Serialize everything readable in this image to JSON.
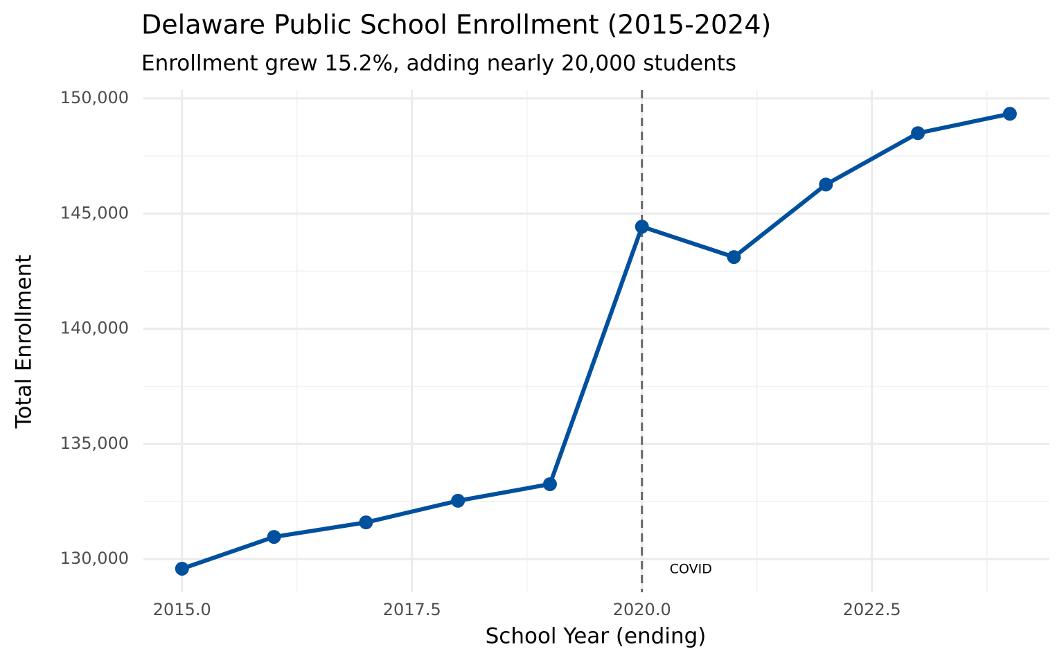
{
  "chart_data": {
    "type": "line",
    "title": "Delaware Public School Enrollment (2015-2024)",
    "subtitle": "Enrollment grew 15.2%, adding nearly 20,000 students",
    "x_label": "School Year (ending)",
    "y_label": "Total Enrollment",
    "x": [
      2015,
      2016,
      2017,
      2018,
      2019,
      2020,
      2021,
      2022,
      2023,
      2024
    ],
    "series": [
      {
        "name": "Total Enrollment",
        "color": "#00509d",
        "values": [
          129580,
          130960,
          131590,
          132530,
          133250,
          144430,
          143110,
          146260,
          148490,
          149330
        ]
      }
    ],
    "xlim": [
      2014.58,
      2024.43
    ],
    "ylim": [
      128557,
      150361
    ],
    "xticks": [
      {
        "value": 2015,
        "label": "2015.0"
      },
      {
        "value": 2017.5,
        "label": "2017.5"
      },
      {
        "value": 2020,
        "label": "2020.0"
      },
      {
        "value": 2022.5,
        "label": "2022.5"
      }
    ],
    "yticks": [
      {
        "value": 130000,
        "label": "130,000"
      },
      {
        "value": 135000,
        "label": "135,000"
      },
      {
        "value": 140000,
        "label": "140,000"
      },
      {
        "value": 145000,
        "label": "145,000"
      },
      {
        "value": 150000,
        "label": "150,000"
      }
    ],
    "grid": true,
    "vline": {
      "x": 2020,
      "label": "COVID",
      "color": "#666666"
    }
  }
}
